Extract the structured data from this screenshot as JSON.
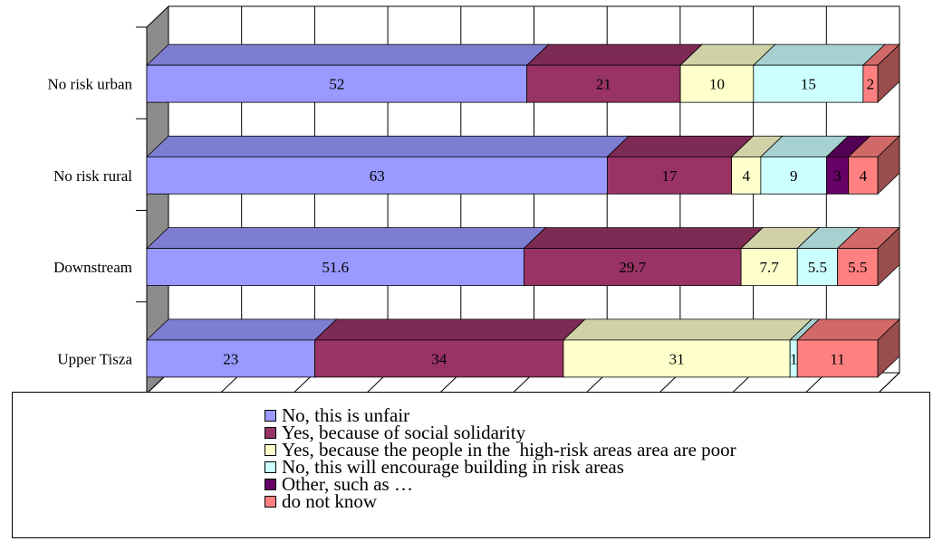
{
  "chart_data": {
    "type": "bar",
    "orientation": "horizontal",
    "stacked": true,
    "three_d": true,
    "categories": [
      "No risk urban",
      "No risk rural",
      "Downstream",
      "Upper Tisza"
    ],
    "series": [
      {
        "name": "No, this is unfair",
        "color": "#9999ff",
        "values": [
          52,
          63,
          51.6,
          23
        ],
        "labels": [
          "52",
          "63",
          "51.6",
          "23"
        ]
      },
      {
        "name": "Yes, because of social solidarity",
        "color": "#993366",
        "values": [
          21,
          17,
          29.7,
          34
        ],
        "labels": [
          "21",
          "17",
          "29.7",
          "34"
        ]
      },
      {
        "name": "Yes, because the people in the  high-risk areas area are poor",
        "color": "#ffffcc",
        "values": [
          10,
          4,
          7.7,
          31
        ],
        "labels": [
          "10",
          "4",
          "7.7",
          "31"
        ]
      },
      {
        "name": "No, this will encourage building in risk areas",
        "color": "#ccffff",
        "values": [
          15,
          9,
          5.5,
          1
        ],
        "labels": [
          "15",
          "9",
          "5.5",
          "1"
        ]
      },
      {
        "name": "Other, such as …",
        "color": "#660066",
        "values": [
          0,
          3,
          0,
          0
        ],
        "labels": [
          "",
          "3",
          "",
          ""
        ]
      },
      {
        "name": "do not know",
        "color": "#ff8080",
        "values": [
          2,
          4,
          5.5,
          11
        ],
        "labels": [
          "2",
          "4",
          "5.5",
          "11"
        ]
      }
    ],
    "xlim": [
      0,
      100
    ],
    "grid": true,
    "legend_position": "bottom"
  }
}
